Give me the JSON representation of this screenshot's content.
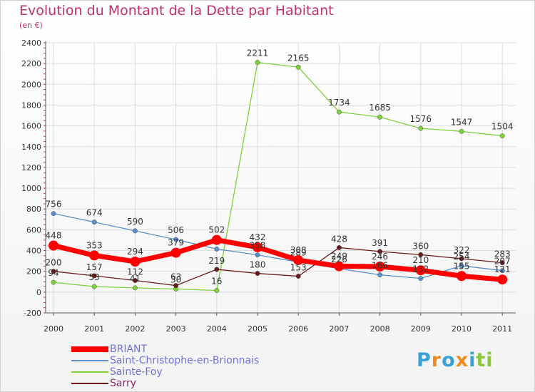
{
  "chart_data": {
    "type": "line",
    "title": "Evolution du Montant de la Dette par Habitant",
    "subtitle": "(en €)",
    "categories": [
      "2000",
      "2001",
      "2002",
      "2003",
      "2004",
      "2005",
      "2006",
      "2007",
      "2008",
      "2009",
      "2010",
      "2011"
    ],
    "ylim": [
      -200,
      2400
    ],
    "yticks": [
      -200,
      0,
      200,
      400,
      600,
      800,
      1000,
      1200,
      1400,
      1600,
      1800,
      2000,
      2200,
      2400
    ],
    "legend_position": "bottom-left",
    "series": [
      {
        "name": "BRIANT",
        "color": "#ff0000",
        "values": [
          448,
          353,
          294,
          379,
          502,
          432,
          308,
          249,
          246,
          210,
          155,
          121
        ]
      },
      {
        "name": "Saint-Christophe-en-Brionnais",
        "color": "#5b8fc9",
        "values": [
          756,
          674,
          590,
          506,
          415,
          358,
          289,
          226,
          166,
          132,
          254,
          207
        ],
        "label_values": [
          756,
          674,
          590,
          506,
          null,
          358,
          289,
          226,
          166,
          132,
          254,
          207
        ]
      },
      {
        "name": "Sainte-Foy",
        "color": "#7fd13b",
        "values": [
          94,
          53,
          41,
          30,
          16,
          2211,
          2165,
          1734,
          1685,
          1576,
          1547,
          1504
        ]
      },
      {
        "name": "Sarry",
        "color": "#6b1a1a",
        "values": [
          200,
          157,
          112,
          63,
          219,
          180,
          153,
          428,
          391,
          360,
          322,
          283
        ]
      }
    ]
  },
  "logo": {
    "letters": [
      "P",
      "r",
      "o",
      "x",
      "i",
      "t",
      "i"
    ],
    "colors": [
      "#3aa0d8",
      "#f08c1e",
      "#3aa0d8",
      "#f08c1e",
      "#3aa0d8",
      "#8dc63f",
      "#8dc63f"
    ]
  }
}
